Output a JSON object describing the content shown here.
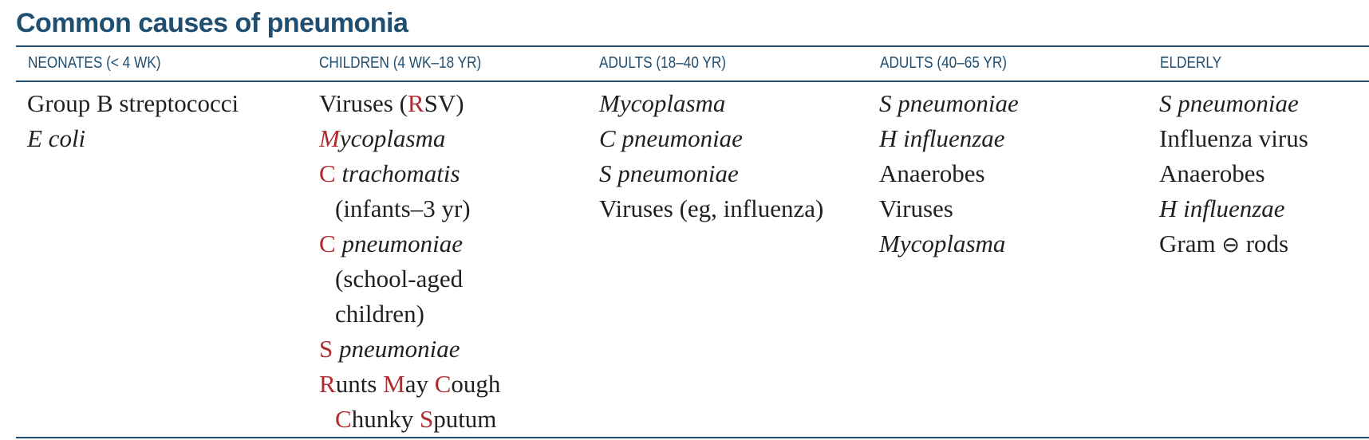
{
  "title": "Common causes of pneumonia",
  "colors": {
    "heading": "#1f4e70",
    "emphasis": "#b02a30",
    "text": "#231f20"
  },
  "columns": [
    {
      "header": "NEONATES (< 4 WK)",
      "items": [
        "Group B streptococci",
        "E coli"
      ]
    },
    {
      "header": "CHILDREN (4 WK–18 YR)",
      "items": [
        "Viruses (RSV)",
        "Mycoplasma",
        "C trachomatis (infants–3 yr)",
        "C pneumoniae (school-aged children)",
        "S pneumoniae"
      ],
      "mnemonic": "Runts May Cough Chunky Sputum"
    },
    {
      "header": "ADULTS (18–40 YR)",
      "items": [
        "Mycoplasma",
        "C pneumoniae",
        "S pneumoniae",
        "Viruses (eg, influenza)"
      ]
    },
    {
      "header": "ADULTS (40–65 YR)",
      "items": [
        "S pneumoniae",
        "H influenzae",
        "Anaerobes",
        "Viruses",
        "Mycoplasma"
      ]
    },
    {
      "header": "ELDERLY",
      "items": [
        "S pneumoniae",
        "Influenza virus",
        "Anaerobes",
        "H influenzae",
        "Gram ⊖ rods"
      ]
    }
  ],
  "frag": {
    "gbs": "Group B streptococci",
    "ecoli": "E coli",
    "vir_open": "Viruses (",
    "R": "R",
    "sv_close": "SV)",
    "M": "M",
    "ycoplasma": "ycoplasma",
    "C": "C",
    "trachomatis": " trachomatis",
    "infants": "(infants–3 yr)",
    "pneumoniae": " pneumoniae",
    "school": "(school-aged",
    "children": "children)",
    "S": "S",
    "unts": "unts ",
    "ay": "ay ",
    "ough": "ough",
    "hunky": "hunky ",
    "putum": "putum",
    "mycoplasma": "Mycoplasma",
    "cpneu": "C pneumoniae",
    "spneu": "S pneumoniae",
    "viruses_eg": "Viruses (eg, influenza)",
    "hinfl": "H influenzae",
    "anaerobes": "Anaerobes",
    "viruses": "Viruses",
    "infl_virus": "Influenza virus",
    "gram": "Gram ",
    "minus": "⊖",
    "rods": " rods"
  }
}
